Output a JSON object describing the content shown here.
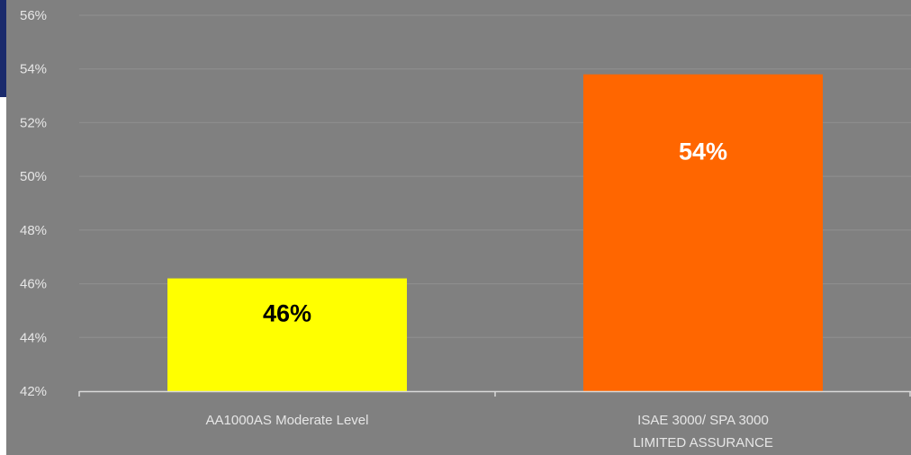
{
  "chart_data": {
    "type": "bar",
    "title": "",
    "xlabel": "",
    "ylabel": "",
    "categories": [
      [
        "AA1000AS Moderate Level"
      ],
      [
        "ISAE 3000/ SPA 3000",
        "LIMITED ASSURANCE"
      ]
    ],
    "values": [
      46.2,
      53.8
    ],
    "data_labels": [
      "46%",
      "54%"
    ],
    "bar_colors": [
      "#ffff00",
      "#ff6600"
    ],
    "data_label_colors": [
      "#000000",
      "#ffffff"
    ],
    "ylim": [
      42,
      56
    ],
    "yticks": [
      42,
      44,
      46,
      48,
      50,
      52,
      54,
      56
    ],
    "ytick_labels": [
      "42%",
      "44%",
      "46%",
      "48%",
      "50%",
      "52%",
      "54%",
      "56%"
    ],
    "grid": true,
    "legend": "none",
    "colors": {
      "plot_background": "#808080",
      "gridline": "#8f8f8f",
      "axis_text": "#e6e6e6",
      "accent": "#1a2a6c"
    }
  }
}
